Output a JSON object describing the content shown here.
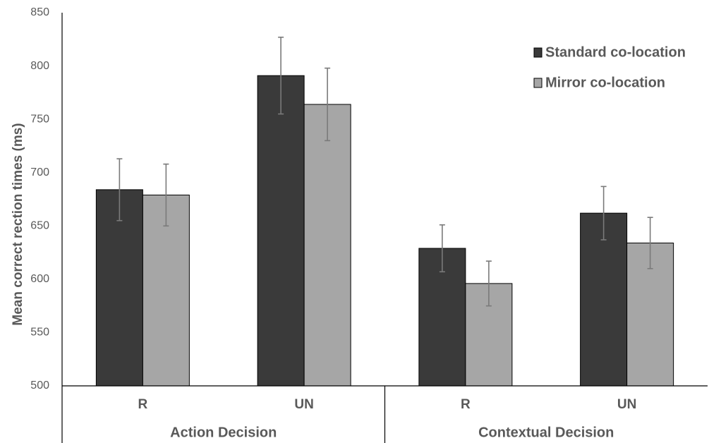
{
  "chart_data": {
    "type": "bar",
    "ylabel": "Mean correct rection times (ms)",
    "ylim": [
      500,
      850
    ],
    "yticks": [
      500,
      550,
      600,
      650,
      700,
      750,
      800,
      850
    ],
    "groups": [
      {
        "label": "Action Decision",
        "categories": [
          "R",
          "UN"
        ]
      },
      {
        "label": "Contextual Decision",
        "categories": [
          "R",
          "UN"
        ]
      }
    ],
    "categories": [
      "R",
      "UN",
      "R",
      "UN"
    ],
    "series": [
      {
        "name": "Standard co-location",
        "color": "#3a3a3a",
        "values": [
          684,
          791,
          629,
          662
        ],
        "errors": [
          29,
          36,
          22,
          25
        ]
      },
      {
        "name": "Mirror co-location",
        "color": "#a6a6a6",
        "values": [
          679,
          764,
          596,
          634
        ],
        "errors": [
          29,
          34,
          21,
          24
        ]
      }
    ],
    "legend_position": "top-right",
    "grid": false
  }
}
